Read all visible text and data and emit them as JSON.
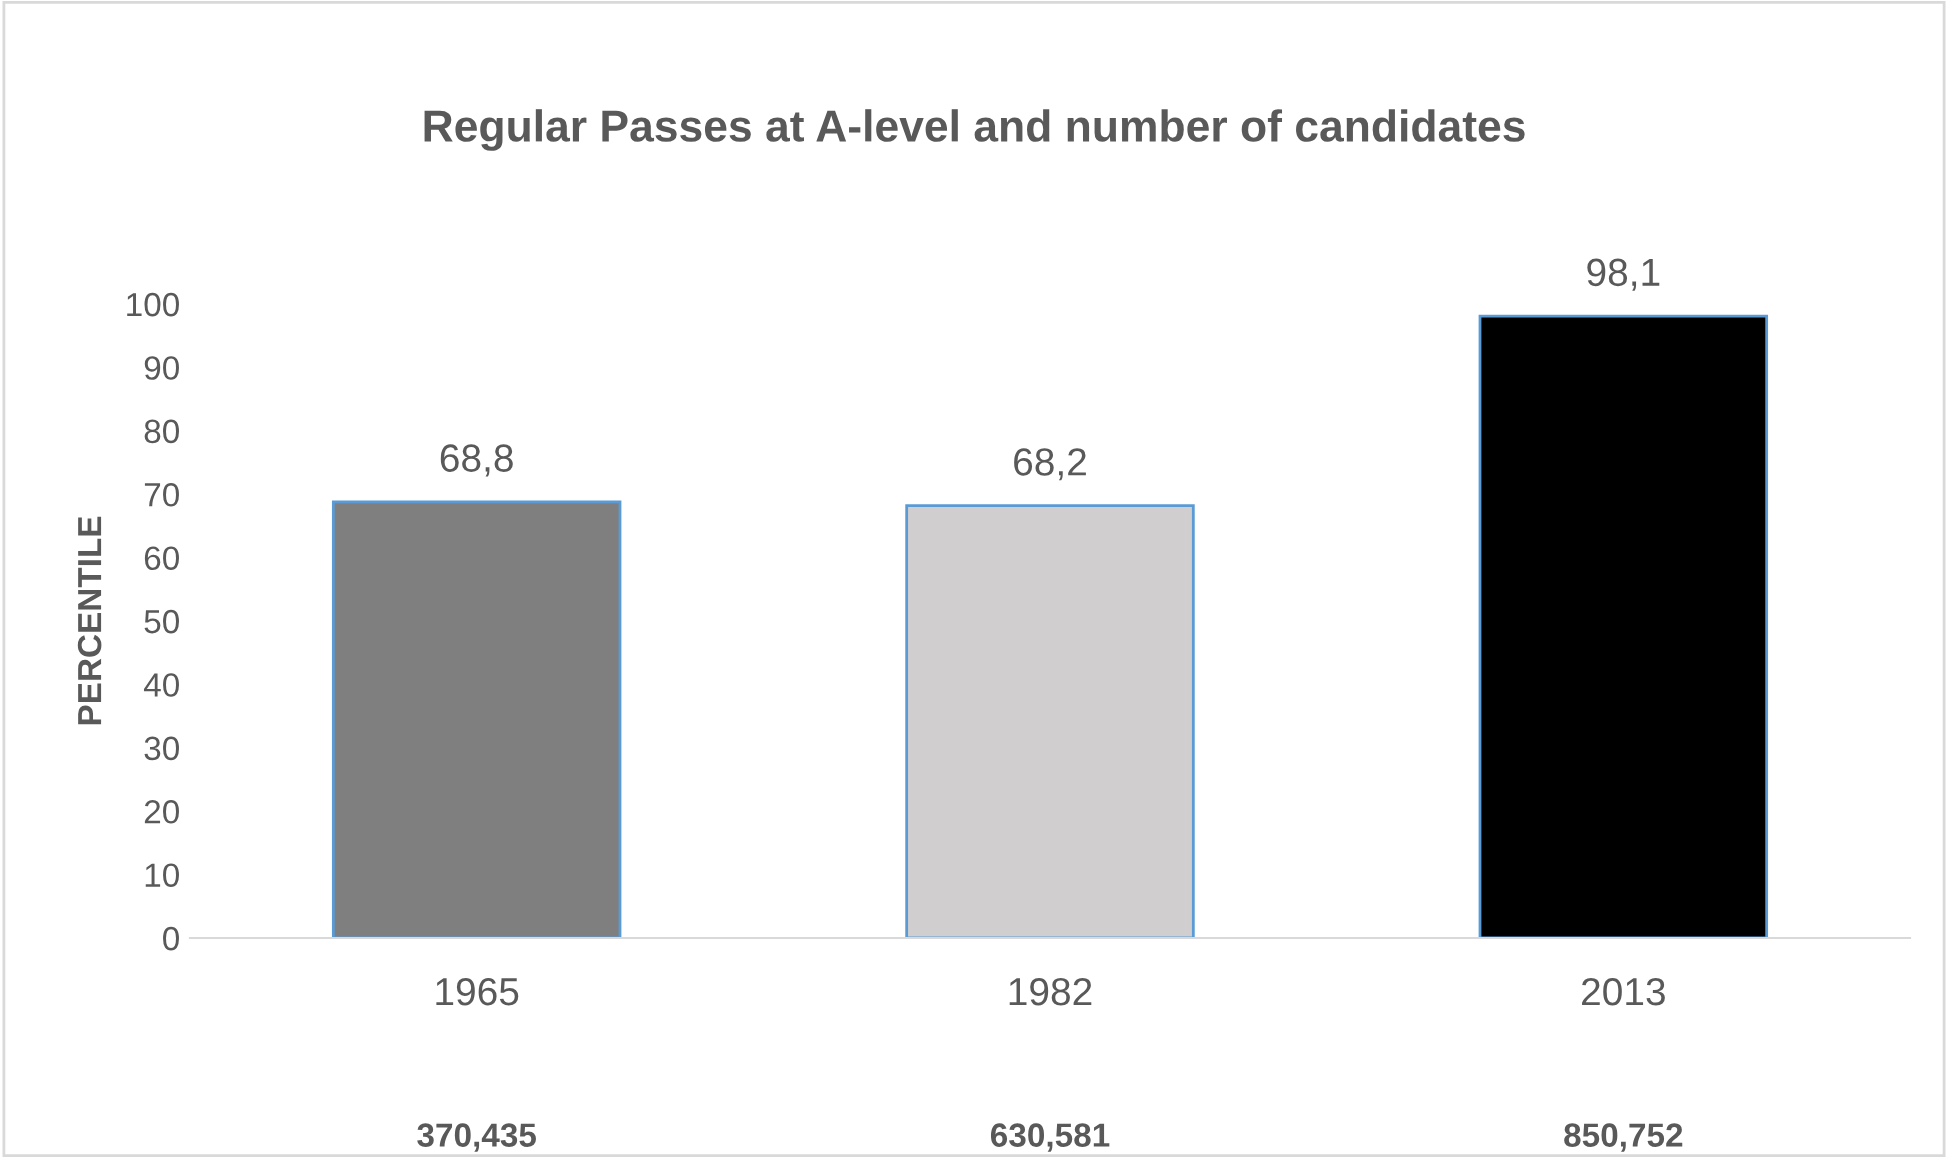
{
  "chart_data": {
    "type": "bar",
    "title": "Regular Passes at A-level and number of candidates",
    "ylabel": "PERCENTILE",
    "categories": [
      "1965",
      "1982",
      "2013"
    ],
    "values": [
      68.8,
      68.2,
      98.1
    ],
    "colors": [
      "#7f7f7f",
      "#d0cece",
      "#000000"
    ],
    "value_labels": [
      "68,8",
      "68,2",
      "98,1"
    ],
    "annotations": [
      "370,435",
      "630,581",
      "850,752"
    ],
    "ylim": [
      0,
      100
    ],
    "yticks": [
      0,
      10,
      20,
      30,
      40,
      50,
      60,
      70,
      80,
      90,
      100
    ],
    "grid": false,
    "legend": false
  }
}
